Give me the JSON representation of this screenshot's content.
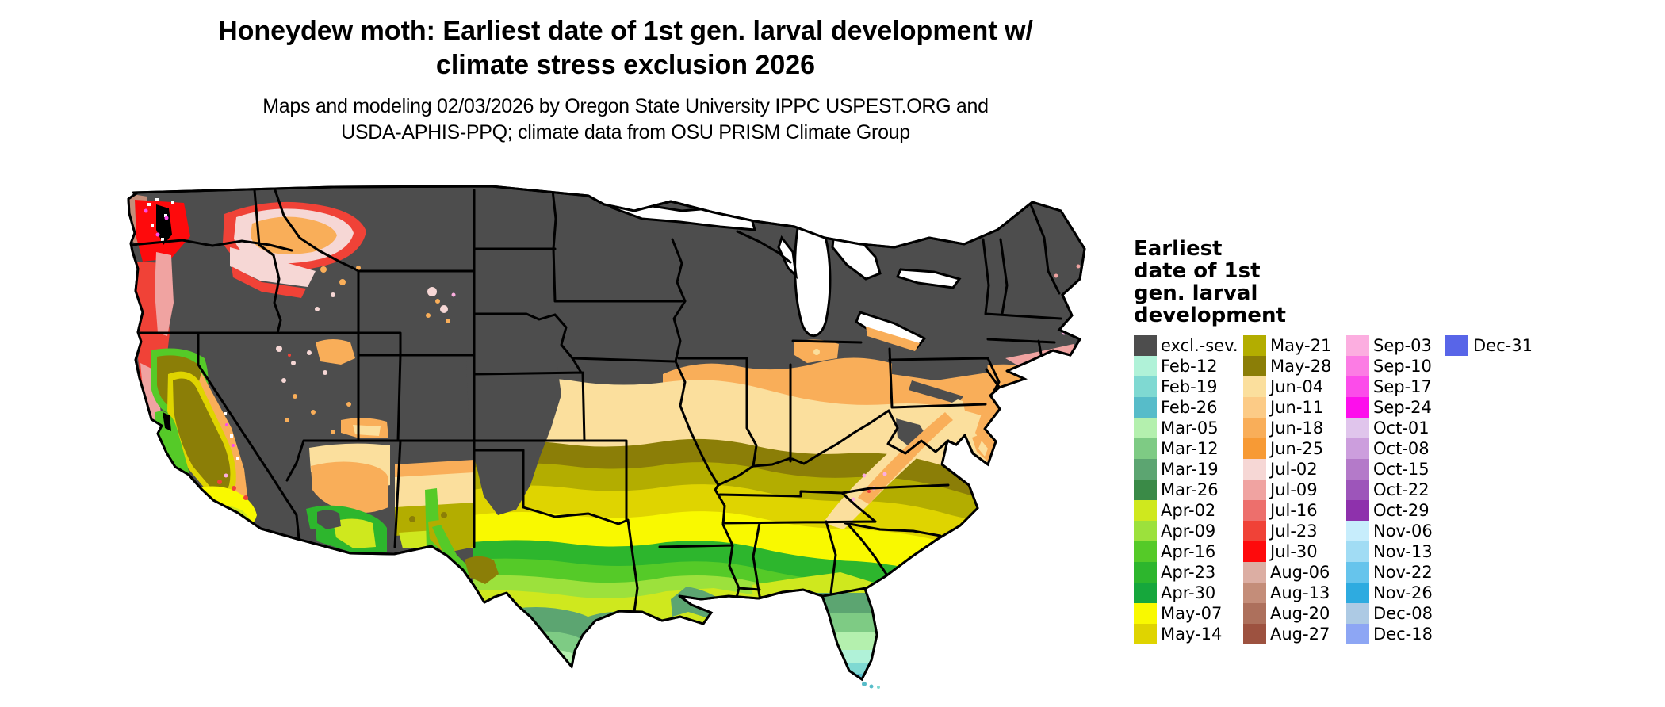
{
  "title": {
    "line1": "Honeydew moth: Earliest date of 1st gen. larval development w/",
    "line2": "climate stress exclusion 2026"
  },
  "subtitle": {
    "line1": "Maps and modeling 02/03/2026 by Oregon State University IPPC USPEST.ORG and",
    "line2": "USDA-APHIS-PPQ; climate data from OSU PRISM Climate Group"
  },
  "legend": {
    "title_lines": [
      "Earliest",
      "date of 1st",
      "gen. larval",
      "development"
    ],
    "columns": [
      [
        {
          "label": "excl.-sev.",
          "color": "#4d4d4d"
        },
        {
          "label": "Feb-12",
          "color": "#b0f2d8"
        },
        {
          "label": "Feb-19",
          "color": "#7fd9d2"
        },
        {
          "label": "Feb-26",
          "color": "#57bcc9"
        },
        {
          "label": "Mar-05",
          "color": "#b4f0ae"
        },
        {
          "label": "Mar-12",
          "color": "#7ecb84"
        },
        {
          "label": "Mar-19",
          "color": "#5ca571"
        },
        {
          "label": "Mar-26",
          "color": "#3a8a47"
        },
        {
          "label": "Apr-02",
          "color": "#cfe81e"
        },
        {
          "label": "Apr-09",
          "color": "#9ce13c"
        },
        {
          "label": "Apr-16",
          "color": "#55ca28"
        },
        {
          "label": "Apr-23",
          "color": "#2db62d"
        },
        {
          "label": "Apr-30",
          "color": "#16a73c"
        },
        {
          "label": "May-07",
          "color": "#f9f900"
        },
        {
          "label": "May-14",
          "color": "#dfd400"
        }
      ],
      [
        {
          "label": "May-21",
          "color": "#b3ad00"
        },
        {
          "label": "May-28",
          "color": "#8b7e07"
        },
        {
          "label": "Jun-04",
          "color": "#fbdf9d"
        },
        {
          "label": "Jun-11",
          "color": "#fccb86"
        },
        {
          "label": "Jun-18",
          "color": "#f9ae59"
        },
        {
          "label": "Jun-25",
          "color": "#f79a35"
        },
        {
          "label": "Jul-02",
          "color": "#f6d7d5"
        },
        {
          "label": "Jul-09",
          "color": "#f0a3a1"
        },
        {
          "label": "Jul-16",
          "color": "#ed6f6c"
        },
        {
          "label": "Jul-23",
          "color": "#f04237"
        },
        {
          "label": "Jul-30",
          "color": "#fe0a0c"
        },
        {
          "label": "Aug-06",
          "color": "#dcaea3"
        },
        {
          "label": "Aug-13",
          "color": "#c48d79"
        },
        {
          "label": "Aug-20",
          "color": "#ad705c"
        },
        {
          "label": "Aug-27",
          "color": "#9d5240"
        }
      ],
      [
        {
          "label": "Sep-03",
          "color": "#fcaee0"
        },
        {
          "label": "Sep-10",
          "color": "#fc7ce4"
        },
        {
          "label": "Sep-17",
          "color": "#fc4cea"
        },
        {
          "label": "Sep-24",
          "color": "#fd0eec"
        },
        {
          "label": "Oct-01",
          "color": "#e0c5ec"
        },
        {
          "label": "Oct-08",
          "color": "#cc9edd"
        },
        {
          "label": "Oct-15",
          "color": "#b47ac9"
        },
        {
          "label": "Oct-22",
          "color": "#9d55ba"
        },
        {
          "label": "Oct-29",
          "color": "#8e31ac"
        },
        {
          "label": "Nov-06",
          "color": "#c7edfc"
        },
        {
          "label": "Nov-13",
          "color": "#a1dcf4"
        },
        {
          "label": "Nov-22",
          "color": "#66c4ec"
        },
        {
          "label": "Nov-26",
          "color": "#2eabe0"
        },
        {
          "label": "Dec-08",
          "color": "#adcae4"
        },
        {
          "label": "Dec-18",
          "color": "#8da6f4"
        }
      ],
      [
        {
          "label": "Dec-31",
          "color": "#5865e8"
        }
      ]
    ]
  },
  "map": {
    "base": "excl.-sev.",
    "lake_color": "#ffffff",
    "inlet_color": "#000000",
    "state_border_color": "#000000",
    "regions": [
      {
        "area": "Northern tier, Rockies and high plains (MT, ND, MN, WI, MI, New England, NV/UT basins)",
        "value": "excl.-sev."
      },
      {
        "area": "Pacific Northwest coast and Puget lowlands",
        "value": "Jul-16 to Aug-27"
      },
      {
        "area": "Willamette Valley and inland NW valleys",
        "value": "Jul-02 to Jul-09"
      },
      {
        "area": "Columbia Basin (eastern Washington)",
        "value": "Jun-18 to Jul-09"
      },
      {
        "area": "California Central Valley and Klamath",
        "value": "May-21 to May-28"
      },
      {
        "area": "Southern California and southern Arizona lowlands",
        "value": "Apr-02 to May-07"
      },
      {
        "area": "Desert Southwest mid-elevations (AZ/NM)",
        "value": "Jun-04 to Jun-25"
      },
      {
        "area": "Central Plains and Ohio Valley (KS, MO, IL, IN, OH)",
        "value": "Jun-04 to Jun-25"
      },
      {
        "area": "Mid-South (OK, AR, TN, VA/NC piedmont)",
        "value": "May-14 to May-28"
      },
      {
        "area": "Gulf states and Carolina/Georgia coastal plain",
        "value": "Apr-02 to May-07"
      },
      {
        "area": "Appalachian highlands",
        "value": "Jun-04 to Jul-09"
      },
      {
        "area": "South Texas",
        "value": "Feb-19 to Mar-26"
      },
      {
        "area": "Florida peninsula",
        "value": "Feb-12 to Mar-26"
      }
    ]
  }
}
